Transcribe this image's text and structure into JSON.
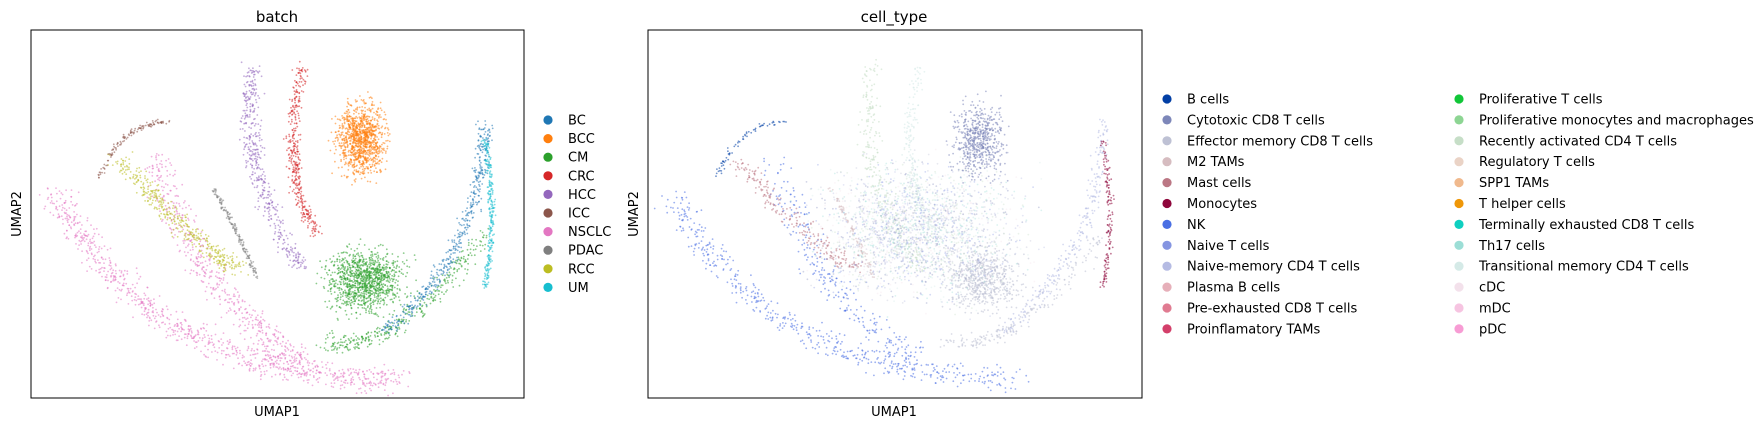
{
  "chart_data": [
    {
      "type": "scatter",
      "title": "batch",
      "xlabel": "UMAP1",
      "ylabel": "UMAP2",
      "grid": false,
      "ticks": false,
      "legend_placement": "right",
      "legend": [
        {
          "label": "BC",
          "color": "#1f77b4"
        },
        {
          "label": "BCC",
          "color": "#ff7f0e"
        },
        {
          "label": "CM",
          "color": "#2ca02c"
        },
        {
          "label": "CRC",
          "color": "#d62728"
        },
        {
          "label": "HCC",
          "color": "#9467bd"
        },
        {
          "label": "ICC",
          "color": "#8c564b"
        },
        {
          "label": "NSCLC",
          "color": "#e377c2"
        },
        {
          "label": "PDAC",
          "color": "#7f7f7f"
        },
        {
          "label": "RCC",
          "color": "#bcbd22"
        },
        {
          "label": "UM",
          "color": "#17becf"
        }
      ]
    },
    {
      "type": "scatter",
      "title": "cell_type",
      "xlabel": "UMAP1",
      "ylabel": "UMAP2",
      "grid": false,
      "ticks": false,
      "legend_placement": "right",
      "legend": [
        {
          "label": "B cells",
          "color": "#023fa5"
        },
        {
          "label": "Cytotoxic CD8 T cells",
          "color": "#7d87b9"
        },
        {
          "label": "Effector memory CD8 T cells",
          "color": "#bec1d4"
        },
        {
          "label": "M2 TAMs",
          "color": "#d6bcc0"
        },
        {
          "label": "Mast cells",
          "color": "#bb7784"
        },
        {
          "label": "Monocytes",
          "color": "#8e063b"
        },
        {
          "label": "NK",
          "color": "#4a6fe3"
        },
        {
          "label": "Naive T cells",
          "color": "#8595e1"
        },
        {
          "label": "Naive-memory CD4 T cells",
          "color": "#b5bbe3"
        },
        {
          "label": "Plasma B cells",
          "color": "#e6afb9"
        },
        {
          "label": "Pre-exhausted CD8 T cells",
          "color": "#e07b91"
        },
        {
          "label": "Proinflamatory TAMs",
          "color": "#d33f6a"
        },
        {
          "label": "Proliferative T cells",
          "color": "#11c638"
        },
        {
          "label": "Proliferative monocytes and macrophages",
          "color": "#8dd593"
        },
        {
          "label": "Recently activated CD4 T cells",
          "color": "#c6dec7"
        },
        {
          "label": "Regulatory T cells",
          "color": "#ead3c6"
        },
        {
          "label": "SPP1 TAMs",
          "color": "#f0b98d"
        },
        {
          "label": "T helper cells",
          "color": "#ef9708"
        },
        {
          "label": "Terminally exhausted CD8 T cells",
          "color": "#0fcfc0"
        },
        {
          "label": "Th17 cells",
          "color": "#9cded6"
        },
        {
          "label": "Transitional memory CD4 T cells",
          "color": "#d5eae7"
        },
        {
          "label": "cDC",
          "color": "#f3e1eb"
        },
        {
          "label": "mDC",
          "color": "#f6c4e1"
        },
        {
          "label": "pDC",
          "color": "#f79cd4"
        }
      ]
    }
  ]
}
